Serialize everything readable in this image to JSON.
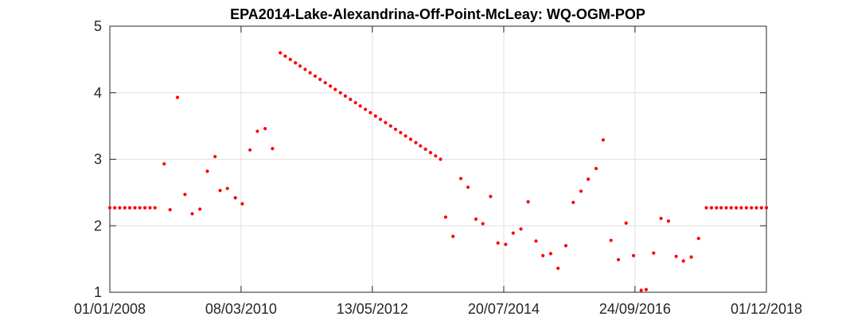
{
  "chart_data": {
    "type": "scatter",
    "title": "EPA2014-Lake-Alexandrina-Off-Point-McLeay: WQ-OGM-POP",
    "xlabel": "",
    "ylabel": "",
    "x_tick_labels": [
      "01/01/2008",
      "08/03/2010",
      "13/05/2012",
      "20/07/2014",
      "24/09/2016",
      "01/12/2018"
    ],
    "y_tick_labels": [
      "1",
      "2",
      "3",
      "4",
      "5"
    ],
    "xlim": [
      "01/01/2008",
      "01/12/2018"
    ],
    "ylim": [
      1,
      5
    ],
    "grid": true,
    "marker_color": "#ff0000",
    "series": [
      {
        "points": [
          [
            "01/01/2008",
            2.27
          ],
          [
            "31/01/2008",
            2.27
          ],
          [
            "01/03/2008",
            2.27
          ],
          [
            "01/04/2008",
            2.27
          ],
          [
            "01/05/2008",
            2.27
          ],
          [
            "01/06/2008",
            2.27
          ],
          [
            "01/07/2008",
            2.27
          ],
          [
            "01/08/2008",
            2.27
          ],
          [
            "01/09/2008",
            2.27
          ],
          [
            "01/10/2008",
            2.27
          ],
          [
            "26/11/2008",
            2.93
          ],
          [
            "01/01/2009",
            2.24
          ],
          [
            "15/02/2009",
            3.93
          ],
          [
            "01/04/2009",
            2.47
          ],
          [
            "15/05/2009",
            2.18
          ],
          [
            "01/07/2009",
            2.25
          ],
          [
            "15/08/2009",
            2.82
          ],
          [
            "01/10/2009",
            3.04
          ],
          [
            "01/11/2009",
            2.53
          ],
          [
            "15/12/2009",
            2.56
          ],
          [
            "01/02/2010",
            2.42
          ],
          [
            "15/03/2010",
            2.33
          ],
          [
            "01/05/2010",
            3.14
          ],
          [
            "15/06/2010",
            3.42
          ],
          [
            "01/08/2010",
            3.46
          ],
          [
            "15/09/2010",
            3.16
          ],
          [
            "01/11/2010",
            4.6
          ],
          [
            "01/12/2010",
            4.55
          ],
          [
            "01/01/2011",
            4.5
          ],
          [
            "01/02/2011",
            4.45
          ],
          [
            "01/03/2011",
            4.4
          ],
          [
            "01/04/2011",
            4.35
          ],
          [
            "01/05/2011",
            4.3
          ],
          [
            "01/06/2011",
            4.25
          ],
          [
            "01/07/2011",
            4.2
          ],
          [
            "01/08/2011",
            4.15
          ],
          [
            "01/09/2011",
            4.1
          ],
          [
            "01/10/2011",
            4.05
          ],
          [
            "01/11/2011",
            4.0
          ],
          [
            "01/12/2011",
            3.95
          ],
          [
            "01/01/2012",
            3.9
          ],
          [
            "01/02/2012",
            3.85
          ],
          [
            "01/03/2012",
            3.8
          ],
          [
            "01/04/2012",
            3.75
          ],
          [
            "01/05/2012",
            3.7
          ],
          [
            "01/06/2012",
            3.65
          ],
          [
            "01/07/2012",
            3.6
          ],
          [
            "01/08/2012",
            3.55
          ],
          [
            "01/09/2012",
            3.5
          ],
          [
            "01/10/2012",
            3.45
          ],
          [
            "01/11/2012",
            3.4
          ],
          [
            "01/12/2012",
            3.35
          ],
          [
            "01/01/2013",
            3.3
          ],
          [
            "01/02/2013",
            3.25
          ],
          [
            "01/03/2013",
            3.2
          ],
          [
            "01/04/2013",
            3.15
          ],
          [
            "01/05/2013",
            3.1
          ],
          [
            "01/06/2013",
            3.05
          ],
          [
            "01/07/2013",
            3.0
          ],
          [
            "01/08/2013",
            2.13
          ],
          [
            "15/09/2013",
            1.84
          ],
          [
            "01/11/2013",
            2.71
          ],
          [
            "15/12/2013",
            2.58
          ],
          [
            "01/02/2014",
            2.1
          ],
          [
            "15/03/2014",
            2.03
          ],
          [
            "01/05/2014",
            2.44
          ],
          [
            "15/06/2014",
            1.74
          ],
          [
            "01/08/2014",
            1.72
          ],
          [
            "15/09/2014",
            1.89
          ],
          [
            "01/11/2014",
            1.95
          ],
          [
            "15/12/2014",
            2.36
          ],
          [
            "01/02/2015",
            1.77
          ],
          [
            "15/03/2015",
            1.55
          ],
          [
            "01/05/2015",
            1.58
          ],
          [
            "15/06/2015",
            1.36
          ],
          [
            "01/08/2015",
            1.7
          ],
          [
            "15/09/2015",
            2.35
          ],
          [
            "01/11/2015",
            2.52
          ],
          [
            "15/12/2015",
            2.7
          ],
          [
            "01/02/2016",
            2.86
          ],
          [
            "15/03/2016",
            3.29
          ],
          [
            "01/05/2016",
            1.78
          ],
          [
            "15/06/2016",
            1.49
          ],
          [
            "01/08/2016",
            2.04
          ],
          [
            "15/09/2016",
            1.55
          ],
          [
            "01/11/2016",
            1.03
          ],
          [
            "01/12/2016",
            1.04
          ],
          [
            "15/01/2017",
            1.59
          ],
          [
            "01/03/2017",
            2.11
          ],
          [
            "15/04/2017",
            2.07
          ],
          [
            "01/06/2017",
            1.54
          ],
          [
            "15/07/2017",
            1.47
          ],
          [
            "01/09/2017",
            1.53
          ],
          [
            "15/10/2017",
            1.81
          ],
          [
            "01/12/2017",
            2.27
          ],
          [
            "01/01/2018",
            2.27
          ],
          [
            "01/02/2018",
            2.27
          ],
          [
            "01/03/2018",
            2.27
          ],
          [
            "01/04/2018",
            2.27
          ],
          [
            "01/05/2018",
            2.27
          ],
          [
            "01/06/2018",
            2.27
          ],
          [
            "01/07/2018",
            2.27
          ],
          [
            "01/08/2018",
            2.27
          ],
          [
            "01/09/2018",
            2.27
          ],
          [
            "01/10/2018",
            2.27
          ],
          [
            "01/11/2018",
            2.27
          ],
          [
            "01/12/2018",
            2.27
          ]
        ]
      }
    ]
  }
}
